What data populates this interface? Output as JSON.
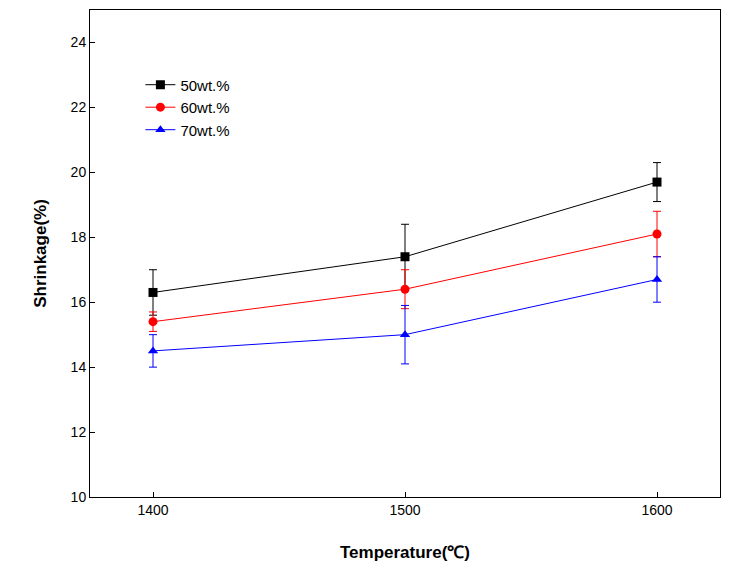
{
  "chart_data": {
    "type": "line",
    "x_label": "Temperature(℃)",
    "y_label": "Shrinkage(%)",
    "x": [
      1400,
      1500,
      1600
    ],
    "xlim": [
      1375,
      1625
    ],
    "xticks": [
      1400,
      1500,
      1600
    ],
    "ylim": [
      10,
      25
    ],
    "yticks": [
      10,
      12,
      14,
      16,
      18,
      20,
      22,
      24
    ],
    "grid": false,
    "legend": "upper left",
    "series": [
      {
        "name": "50wt.%",
        "color": "#000000",
        "marker": "square",
        "line_style": "solid",
        "values": [
          16.3,
          17.4,
          19.7
        ],
        "errors": [
          0.7,
          1.0,
          0.6
        ]
      },
      {
        "name": "60wt.%",
        "color": "#ff0000",
        "marker": "circle",
        "line_style": "solid",
        "values": [
          15.4,
          16.4,
          18.1
        ],
        "errors": [
          0.3,
          0.6,
          0.7
        ]
      },
      {
        "name": "70wt.%",
        "color": "#0000ff",
        "marker": "triangle-up",
        "line_style": "solid",
        "values": [
          14.5,
          15.0,
          16.7
        ],
        "errors": [
          0.5,
          0.9,
          0.7
        ]
      }
    ]
  }
}
